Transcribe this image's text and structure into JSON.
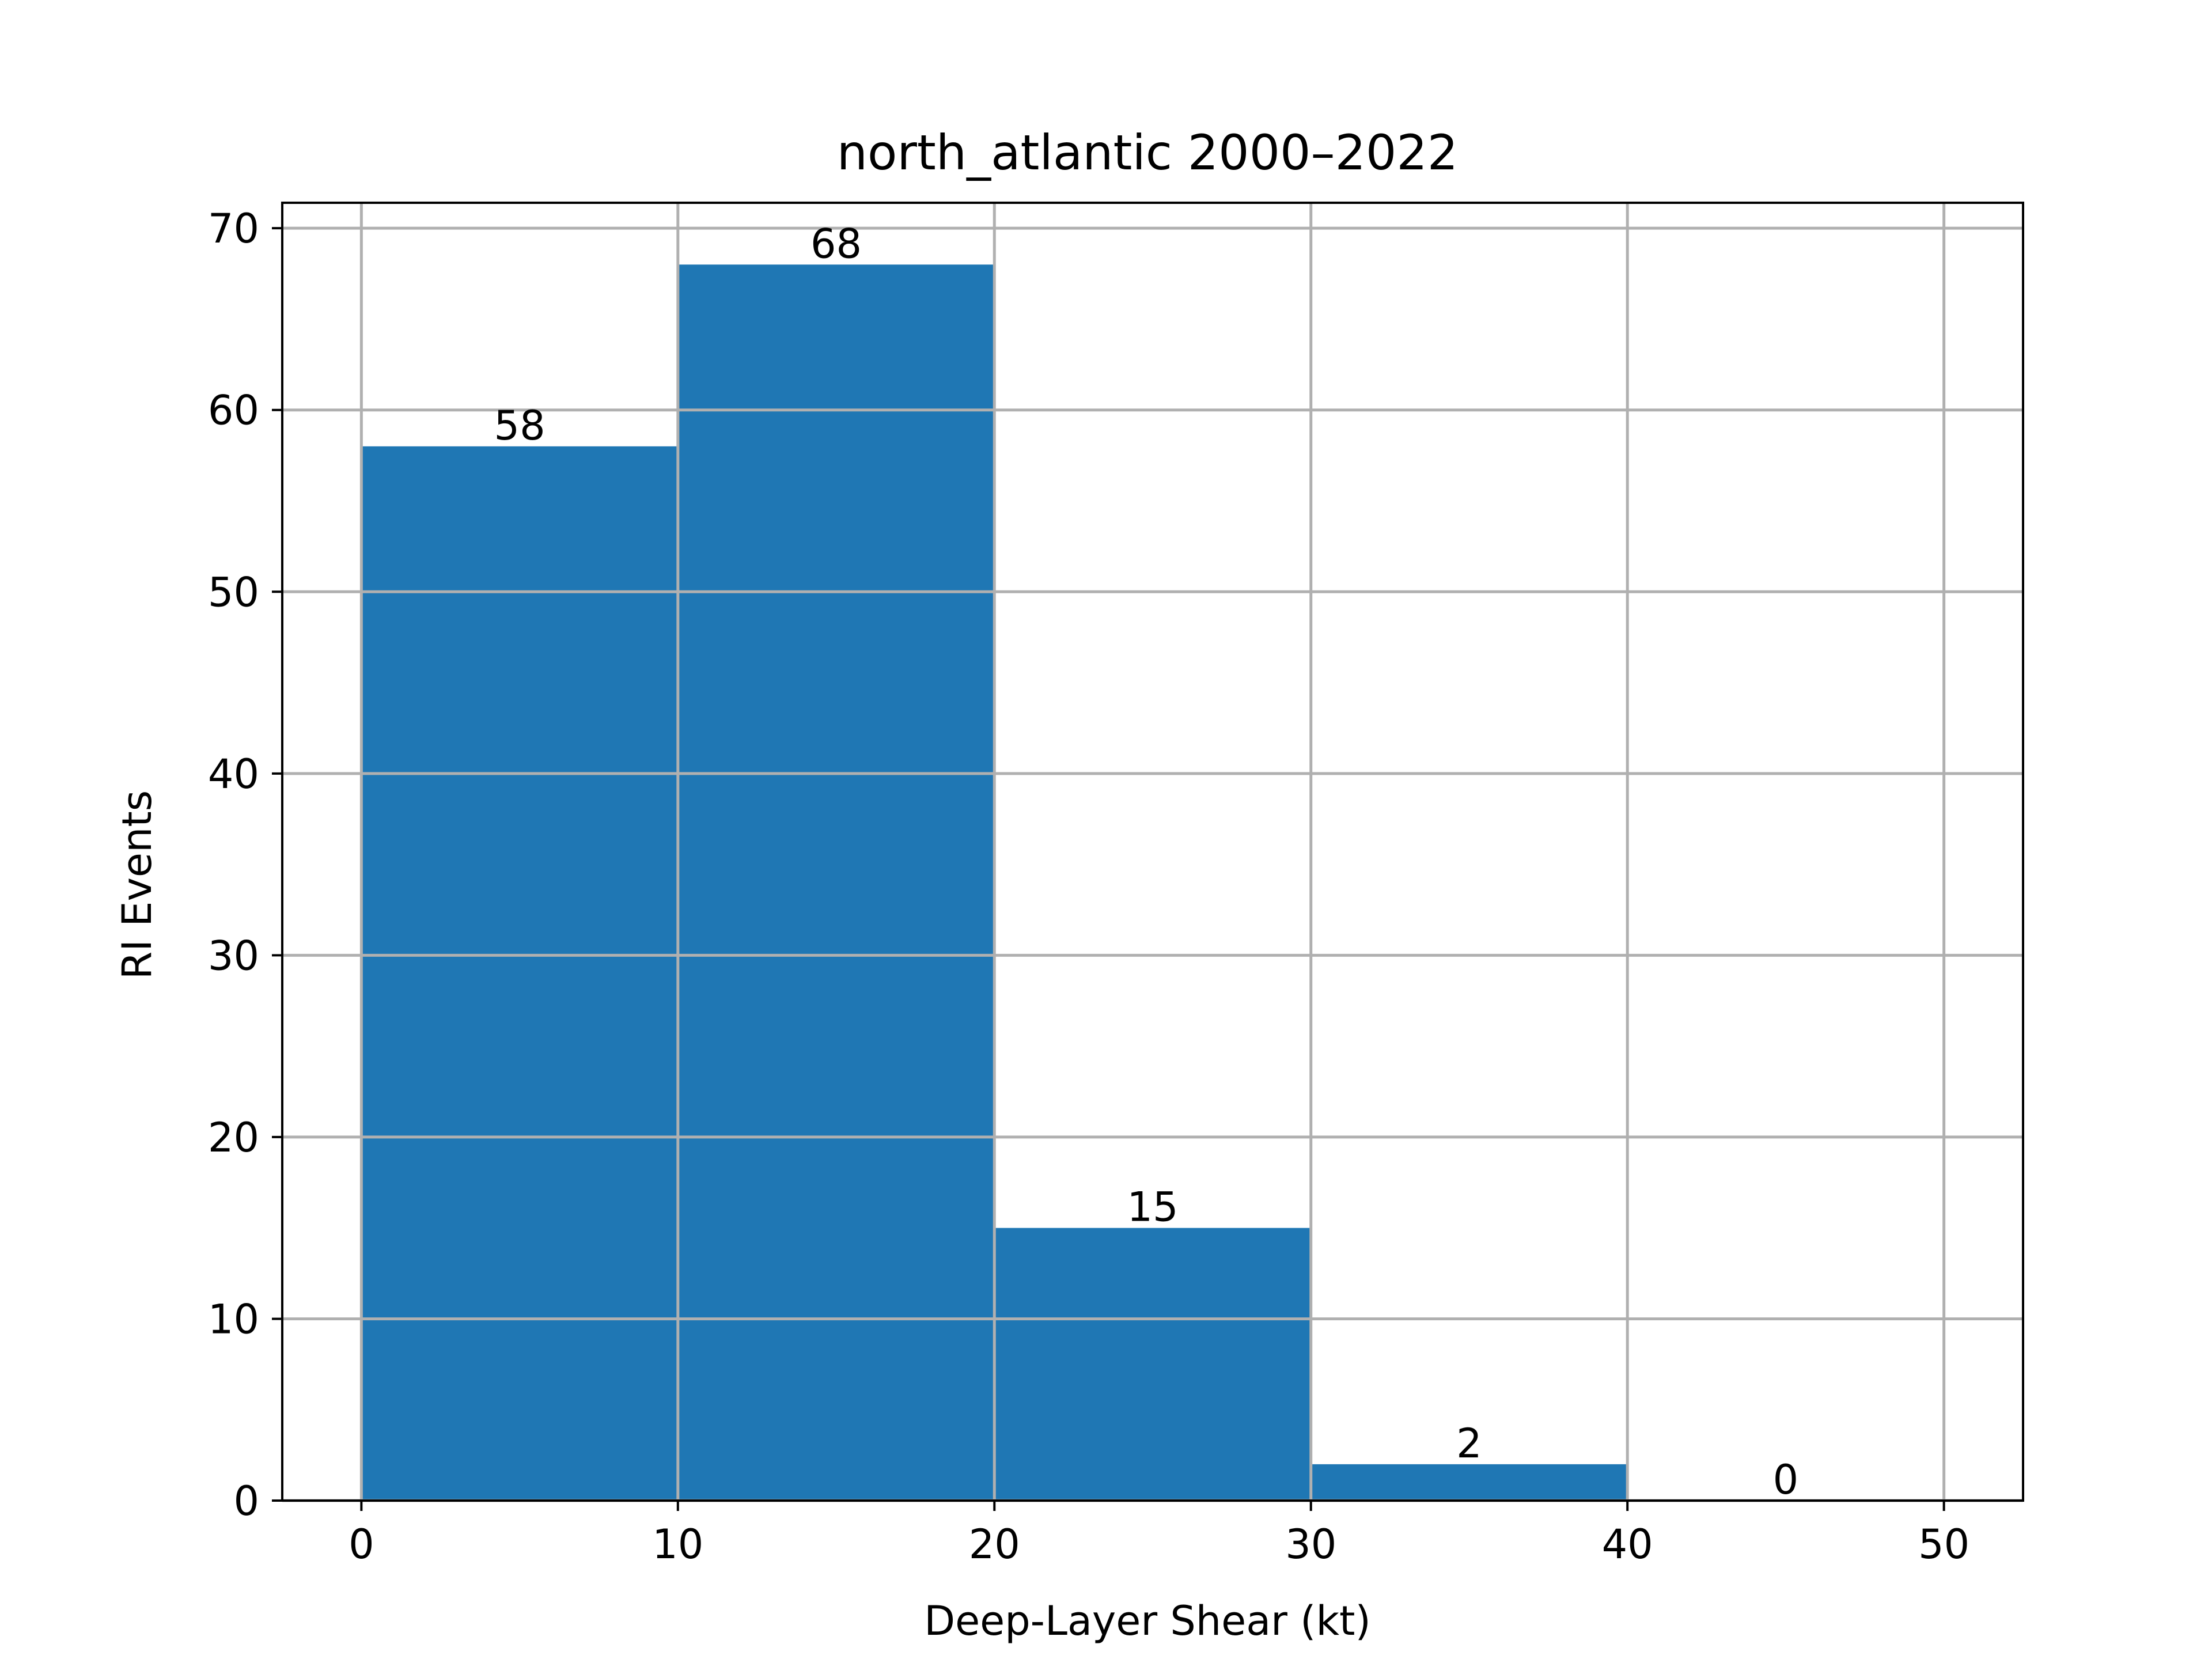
{
  "chart_data": {
    "type": "bar",
    "title": "north_atlantic 2000–2022",
    "xlabel": "Deep-Layer Shear (kt)",
    "ylabel": "RI Events",
    "bin_edges": [
      0,
      10,
      20,
      30,
      40,
      50
    ],
    "values": [
      58,
      68,
      15,
      2,
      0
    ],
    "bar_labels": [
      "58",
      "68",
      "15",
      "2",
      "0"
    ],
    "xlim": [
      -2.5,
      52.5
    ],
    "ylim": [
      0,
      71.4
    ],
    "xticks": [
      0,
      10,
      20,
      30,
      40,
      50
    ],
    "xtick_labels": [
      "0",
      "10",
      "20",
      "30",
      "40",
      "50"
    ],
    "yticks": [
      0,
      10,
      20,
      30,
      40,
      50,
      60,
      70
    ],
    "ytick_labels": [
      "0",
      "10",
      "20",
      "30",
      "40",
      "50",
      "60",
      "70"
    ],
    "grid": true,
    "legend": "none"
  },
  "colors": {
    "bar": "#1f77b4",
    "grid": "#b0b0b0",
    "axes": "#000000",
    "background": "#ffffff"
  }
}
